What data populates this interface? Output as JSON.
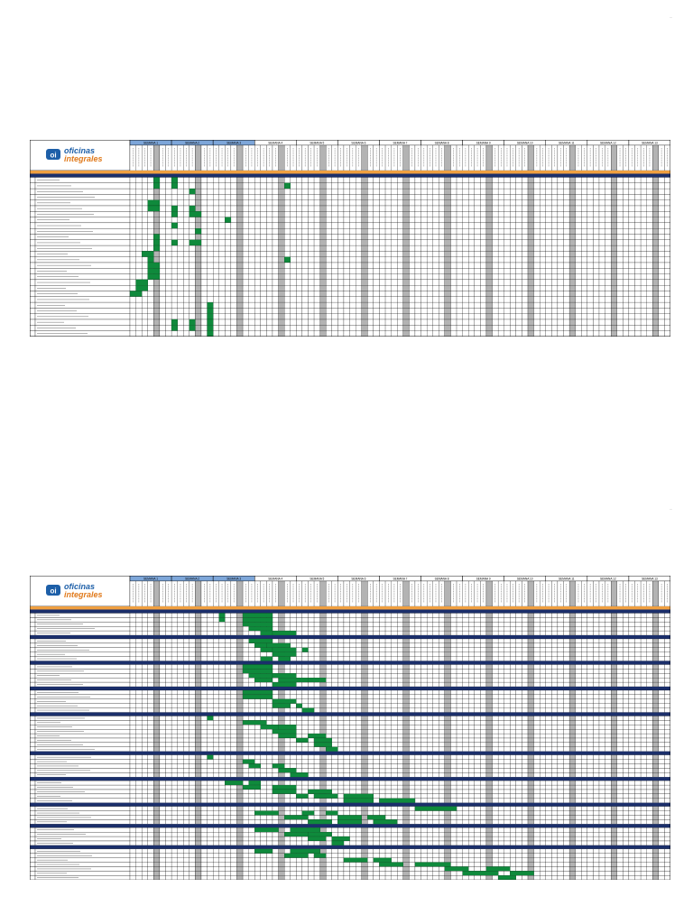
{
  "page_markers": [
    "—",
    "—"
  ],
  "company": {
    "name_line1": "oficinas",
    "name_line2": "integrales",
    "logo_mark": "oi"
  },
  "colors": {
    "header_weeks_shaded": "#7da6d9",
    "section_bar": "#1b2f6b",
    "task_fill": "#0f8a3c",
    "weekend_col": "#b3b3b3",
    "title_strip": "#f0a040",
    "grid": "#000000"
  },
  "chart_data": [
    {
      "type": "table",
      "title": "",
      "weeks": [
        "SEMANA 1",
        "SEMANA 2",
        "SEMANA 3",
        "SEMANA 4",
        "SEMANA 5",
        "SEMANA 6",
        "SEMANA 7",
        "SEMANA 8",
        "SEMANA 9",
        "SEMANA 10",
        "SEMANA 11",
        "SEMANA 12",
        "SEMANA 13"
      ],
      "banner": "",
      "sections": [
        {
          "title": "",
          "rows": [
            {
              "label": "",
              "bars": [
                [
                  4,
                  1
                ],
                [
                  7,
                  1
                ]
              ]
            },
            {
              "label": "",
              "bars": [
                [
                  4,
                  1
                ],
                [
                  7,
                  1
                ],
                [
                  26,
                  1
                ]
              ]
            },
            {
              "label": "",
              "bars": [
                [
                  10,
                  1
                ]
              ]
            },
            {
              "label": "",
              "bars": []
            },
            {
              "label": "",
              "bars": [
                [
                  3,
                  2
                ]
              ]
            },
            {
              "label": "",
              "bars": [
                [
                  3,
                  2
                ],
                [
                  7,
                  1
                ],
                [
                  10,
                  1
                ]
              ]
            },
            {
              "label": "",
              "bars": [
                [
                  7,
                  1
                ],
                [
                  10,
                  2
                ]
              ]
            },
            {
              "label": "",
              "bars": [
                [
                  16,
                  1
                ]
              ]
            },
            {
              "label": "",
              "bars": [
                [
                  7,
                  1
                ]
              ]
            },
            {
              "label": "",
              "bars": [
                [
                  11,
                  1
                ]
              ]
            },
            {
              "label": "",
              "bars": [
                [
                  4,
                  1
                ]
              ]
            },
            {
              "label": "",
              "bars": [
                [
                  4,
                  1
                ],
                [
                  7,
                  1
                ],
                [
                  10,
                  2
                ]
              ]
            },
            {
              "label": "",
              "bars": [
                [
                  4,
                  1
                ]
              ]
            },
            {
              "label": "",
              "bars": [
                [
                  2,
                  2
                ]
              ]
            },
            {
              "label": "",
              "bars": [
                [
                  3,
                  1
                ],
                [
                  26,
                  1
                ]
              ]
            },
            {
              "label": "",
              "bars": [
                [
                  3,
                  2
                ]
              ]
            },
            {
              "label": "",
              "bars": [
                [
                  3,
                  2
                ]
              ]
            },
            {
              "label": "",
              "bars": [
                [
                  3,
                  2
                ]
              ]
            },
            {
              "label": "",
              "bars": [
                [
                  1,
                  2
                ]
              ]
            },
            {
              "label": "",
              "bars": [
                [
                  1,
                  2
                ]
              ]
            },
            {
              "label": "",
              "bars": [
                [
                  0,
                  2
                ]
              ]
            },
            {
              "label": "",
              "bars": []
            },
            {
              "label": "",
              "bars": [
                [
                  13,
                  1
                ]
              ]
            },
            {
              "label": "",
              "bars": [
                [
                  13,
                  1
                ]
              ]
            },
            {
              "label": "",
              "bars": [
                [
                  13,
                  1
                ]
              ]
            },
            {
              "label": "",
              "bars": [
                [
                  7,
                  1
                ],
                [
                  10,
                  1
                ],
                [
                  13,
                  1
                ]
              ]
            },
            {
              "label": "",
              "bars": [
                [
                  7,
                  1
                ],
                [
                  10,
                  1
                ],
                [
                  13,
                  1
                ]
              ]
            },
            {
              "label": "",
              "bars": [
                [
                  13,
                  1
                ]
              ]
            }
          ]
        }
      ]
    },
    {
      "type": "table",
      "title": "",
      "weeks": [
        "SEMANA 1",
        "SEMANA 2",
        "SEMANA 3",
        "SEMANA 4",
        "SEMANA 5",
        "SEMANA 6",
        "SEMANA 7",
        "SEMANA 8",
        "SEMANA 9",
        "SEMANA 10",
        "SEMANA 11",
        "SEMANA 12",
        "SEMANA 13"
      ],
      "banner": "",
      "sections": [
        {
          "title": "",
          "rows": [
            {
              "label": "",
              "bars": [
                [
                  15,
                  1
                ],
                [
                  19,
                  5
                ]
              ]
            },
            {
              "label": "",
              "bars": [
                [
                  15,
                  1
                ],
                [
                  19,
                  5
                ]
              ]
            },
            {
              "label": "",
              "bars": [
                [
                  19,
                  5
                ]
              ]
            },
            {
              "label": "",
              "bars": [
                [
                  20,
                  4
                ]
              ]
            },
            {
              "label": "",
              "bars": [
                [
                  22,
                  2
                ],
                [
                  24,
                  4
                ]
              ]
            }
          ]
        },
        {
          "title": "",
          "rows": [
            {
              "label": "",
              "bars": [
                [
                  20,
                  4
                ]
              ]
            },
            {
              "label": "",
              "bars": [
                [
                  21,
                  2
                ],
                [
                  23,
                  4
                ]
              ]
            },
            {
              "label": "",
              "bars": [
                [
                  22,
                  2
                ],
                [
                  24,
                  4
                ],
                [
                  29,
                  1
                ]
              ]
            },
            {
              "label": "",
              "bars": [
                [
                  24,
                  4
                ]
              ]
            },
            {
              "label": "",
              "bars": [
                [
                  22,
                  2
                ],
                [
                  25,
                  2
                ]
              ]
            }
          ]
        },
        {
          "title": "",
          "rows": [
            {
              "label": "",
              "bars": [
                [
                  19,
                  5
                ]
              ]
            },
            {
              "label": "",
              "bars": [
                [
                  19,
                  5
                ]
              ]
            },
            {
              "label": "",
              "bars": [
                [
                  20,
                  4
                ],
                [
                  24,
                  4
                ]
              ]
            },
            {
              "label": "",
              "bars": [
                [
                  21,
                  3
                ],
                [
                  25,
                  5
                ],
                [
                  30,
                  3
                ]
              ]
            },
            {
              "label": "",
              "bars": [
                [
                  24,
                  4
                ]
              ]
            }
          ]
        },
        {
          "title": "",
          "rows": [
            {
              "label": "",
              "bars": [
                [
                  19,
                  5
                ]
              ]
            },
            {
              "label": "",
              "bars": [
                [
                  19,
                  5
                ]
              ]
            },
            {
              "label": "",
              "bars": [
                [
                  24,
                  4
                ]
              ]
            },
            {
              "label": "",
              "bars": [
                [
                  24,
                  3
                ],
                [
                  28,
                  1
                ]
              ]
            },
            {
              "label": "",
              "bars": [
                [
                  29,
                  2
                ]
              ]
            }
          ]
        },
        {
          "title": "",
          "rows": [
            {
              "label": "",
              "bars": [
                [
                  13,
                  1
                ]
              ]
            },
            {
              "label": "",
              "bars": [
                [
                  19,
                  4
                ]
              ]
            },
            {
              "label": "",
              "bars": [
                [
                  22,
                  3
                ],
                [
                  25,
                  3
                ]
              ]
            },
            {
              "label": "",
              "bars": [
                [
                  24,
                  4
                ]
              ]
            },
            {
              "label": "",
              "bars": [
                [
                  25,
                  3
                ],
                [
                  30,
                  3
                ]
              ]
            },
            {
              "label": "",
              "bars": [
                [
                  28,
                  2
                ],
                [
                  31,
                  3
                ]
              ]
            },
            {
              "label": "",
              "bars": [
                [
                  31,
                  3
                ]
              ]
            },
            {
              "label": "",
              "bars": [
                [
                  33,
                  2
                ]
              ]
            }
          ]
        },
        {
          "title": "",
          "rows": [
            {
              "label": "",
              "bars": [
                [
                  13,
                  1
                ]
              ]
            },
            {
              "label": "",
              "bars": [
                [
                  19,
                  2
                ]
              ]
            },
            {
              "label": "",
              "bars": [
                [
                  20,
                  2
                ],
                [
                  24,
                  2
                ]
              ]
            },
            {
              "label": "",
              "bars": [
                [
                  25,
                  3
                ]
              ]
            },
            {
              "label": "",
              "bars": [
                [
                  27,
                  3
                ]
              ]
            }
          ]
        },
        {
          "title": "",
          "rows": [
            {
              "label": "",
              "bars": [
                [
                  16,
                  3
                ],
                [
                  20,
                  2
                ]
              ]
            },
            {
              "label": "",
              "bars": [
                [
                  19,
                  3
                ],
                [
                  24,
                  4
                ]
              ]
            },
            {
              "label": "",
              "bars": [
                [
                  24,
                  4
                ],
                [
                  30,
                  4
                ]
              ]
            },
            {
              "label": "",
              "bars": [
                [
                  28,
                  2
                ],
                [
                  31,
                  4
                ],
                [
                  36,
                  5
                ]
              ]
            },
            {
              "label": "",
              "bars": [
                [
                  36,
                  5
                ],
                [
                  42,
                  6
                ]
              ]
            }
          ]
        },
        {
          "title": "",
          "rows": [
            {
              "label": "",
              "bars": [
                [
                  48,
                  7
                ]
              ]
            },
            {
              "label": "",
              "bars": [
                [
                  21,
                  4
                ],
                [
                  29,
                  2
                ],
                [
                  33,
                  2
                ]
              ]
            },
            {
              "label": "",
              "bars": [
                [
                  26,
                  4
                ],
                [
                  35,
                  4
                ],
                [
                  40,
                  3
                ]
              ]
            },
            {
              "label": "",
              "bars": [
                [
                  30,
                  4
                ],
                [
                  35,
                  4
                ],
                [
                  41,
                  4
                ]
              ]
            }
          ]
        },
        {
          "title": "",
          "rows": [
            {
              "label": "",
              "bars": [
                [
                  21,
                  4
                ],
                [
                  27,
                  5
                ]
              ]
            },
            {
              "label": "",
              "bars": [
                [
                  26,
                  4
                ],
                [
                  30,
                  4
                ]
              ]
            },
            {
              "label": "",
              "bars": [
                [
                  30,
                  3
                ],
                [
                  34,
                  3
                ]
              ]
            },
            {
              "label": "",
              "bars": [
                [
                  34,
                  2
                ]
              ]
            }
          ]
        },
        {
          "title": "",
          "rows": [
            {
              "label": "",
              "bars": [
                [
                  21,
                  3
                ],
                [
                  27,
                  5
                ]
              ]
            },
            {
              "label": "",
              "bars": [
                [
                  26,
                  4
                ],
                [
                  31,
                  2
                ]
              ]
            },
            {
              "label": "",
              "bars": [
                [
                  36,
                  4
                ],
                [
                  41,
                  3
                ]
              ]
            },
            {
              "label": "",
              "bars": [
                [
                  42,
                  4
                ],
                [
                  48,
                  6
                ]
              ]
            },
            {
              "label": "",
              "bars": [
                [
                  53,
                  4
                ],
                [
                  60,
                  4
                ]
              ]
            },
            {
              "label": "",
              "bars": [
                [
                  56,
                  6
                ],
                [
                  64,
                  4
                ]
              ]
            },
            {
              "label": "",
              "bars": [
                [
                  62,
                  3
                ]
              ]
            }
          ]
        }
      ]
    }
  ]
}
